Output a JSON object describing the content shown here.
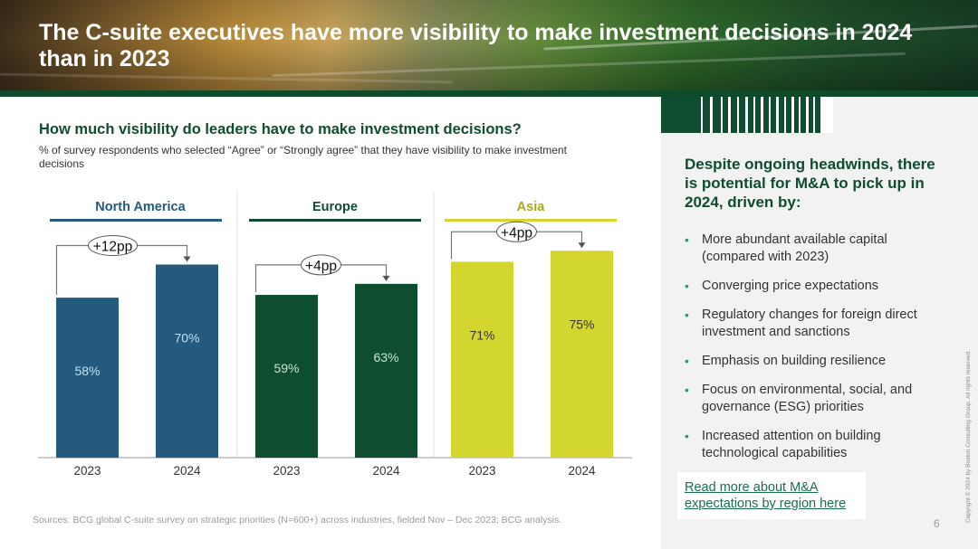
{
  "header": {
    "title": "The C-suite executives have more visibility to make investment decisions in 2024 than in 2023"
  },
  "main": {
    "question": "How much visibility do leaders have to make investment decisions?",
    "subtitle": "% of survey respondents who selected “Agree” or “Strongly agree” that they have visibility to make investment decisions",
    "source": "Sources: BCG global C-suite survey on strategic priorities (N=600+) across industries, fielded Nov – Dec 2023; BCG analysis."
  },
  "sidebar": {
    "headline": "Despite ongoing headwinds, there is potential for M&A to pick up in 2024, driven by:",
    "bullets": [
      "More abundant available capital (compared with 2023)",
      "Converging price expectations",
      "Regulatory changes for foreign direct investment and sanctions",
      "Emphasis on building resilience",
      "Focus on environmental, social, and governance (ESG) priorities",
      "Increased attention on building technological capabilities"
    ],
    "read_more": "Read more about M&A expectations by region here"
  },
  "footer": {
    "page_number": "6",
    "copyright": "Copyright © 2024 by Boston Consulting Group. All rights reserved."
  },
  "chart_data": {
    "type": "bar",
    "ylabel": "% of survey respondents",
    "ylim": [
      0,
      100
    ],
    "groups": [
      {
        "name": "North America",
        "color": "#245a7e",
        "label_color": "#bfe0ee",
        "categories": [
          "2023",
          "2024"
        ],
        "values": [
          58,
          70
        ],
        "value_labels": [
          "58%",
          "70%"
        ],
        "change": "+12pp"
      },
      {
        "name": "Europe",
        "color": "#0e4d2f",
        "label_color": "#c8e6d4",
        "categories": [
          "2023",
          "2024"
        ],
        "values": [
          59,
          63
        ],
        "value_labels": [
          "59%",
          "63%"
        ],
        "change": "+4pp"
      },
      {
        "name": "Asia",
        "color": "#d4d630",
        "label_color": "#333333",
        "categories": [
          "2023",
          "2024"
        ],
        "values": [
          71,
          75
        ],
        "value_labels": [
          "71%",
          "75%"
        ],
        "change": "+4pp"
      }
    ]
  }
}
